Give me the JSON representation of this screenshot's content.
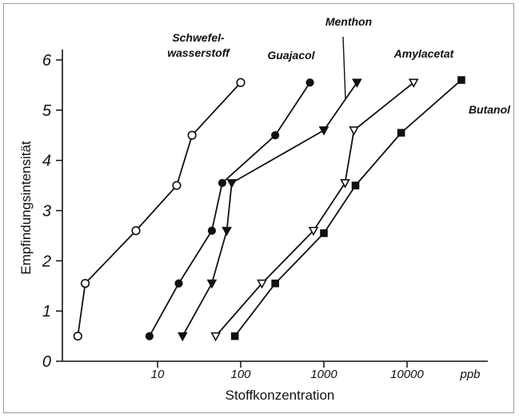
{
  "chart_data": {
    "type": "line",
    "title": "",
    "xlabel": "Stoffkonzentration",
    "ylabel": "Empfindungsintensität",
    "x_unit_label": "ppb",
    "x_scale": "log",
    "xlim": [
      0.9,
      50000
    ],
    "ylim": [
      0,
      6
    ],
    "x_ticks": [
      {
        "value": 10,
        "label": "10"
      },
      {
        "value": 100,
        "label": "100"
      },
      {
        "value": 1000,
        "label": "1000"
      },
      {
        "value": 10000,
        "label": "10000"
      }
    ],
    "y_ticks": [
      {
        "value": 0,
        "label": "0"
      },
      {
        "value": 1,
        "label": "1"
      },
      {
        "value": 2,
        "label": "2"
      },
      {
        "value": 3,
        "label": "3"
      },
      {
        "value": 4,
        "label": "4"
      },
      {
        "value": 5,
        "label": "5"
      },
      {
        "value": 6,
        "label": "6"
      }
    ],
    "grid": false,
    "series": [
      {
        "name": "Schwefel-wasserstoff",
        "label_lines": [
          "Schwefel-",
          "wasserstoff"
        ],
        "marker": "circle-open",
        "points": [
          {
            "x": 1.1,
            "y": 0.5
          },
          {
            "x": 1.35,
            "y": 1.55
          },
          {
            "x": 5.5,
            "y": 2.6
          },
          {
            "x": 17,
            "y": 3.5
          },
          {
            "x": 26,
            "y": 4.5
          },
          {
            "x": 100,
            "y": 5.55
          }
        ]
      },
      {
        "name": "Guajacol",
        "label_lines": [
          "Guajacol"
        ],
        "marker": "circle-filled",
        "points": [
          {
            "x": 8,
            "y": 0.5
          },
          {
            "x": 18,
            "y": 1.55
          },
          {
            "x": 45,
            "y": 2.6
          },
          {
            "x": 60,
            "y": 3.55
          },
          {
            "x": 260,
            "y": 4.5
          },
          {
            "x": 680,
            "y": 5.55
          }
        ]
      },
      {
        "name": "Menthon",
        "label_lines": [
          "Menthon"
        ],
        "marker": "triangle-filled",
        "points": [
          {
            "x": 20,
            "y": 0.5
          },
          {
            "x": 45,
            "y": 1.55
          },
          {
            "x": 68,
            "y": 2.6
          },
          {
            "x": 78,
            "y": 3.55
          },
          {
            "x": 1000,
            "y": 4.6
          },
          {
            "x": 2500,
            "y": 5.55
          }
        ]
      },
      {
        "name": "Amylacetat",
        "label_lines": [
          "Amylacetat"
        ],
        "marker": "triangle-open",
        "points": [
          {
            "x": 50,
            "y": 0.5
          },
          {
            "x": 180,
            "y": 1.55
          },
          {
            "x": 750,
            "y": 2.6
          },
          {
            "x": 1800,
            "y": 3.55
          },
          {
            "x": 2300,
            "y": 4.6
          },
          {
            "x": 12000,
            "y": 5.55
          }
        ]
      },
      {
        "name": "Butanol",
        "label_lines": [
          "Butanol"
        ],
        "marker": "square-filled",
        "points": [
          {
            "x": 85,
            "y": 0.5
          },
          {
            "x": 260,
            "y": 1.55
          },
          {
            "x": 1000,
            "y": 2.55
          },
          {
            "x": 2400,
            "y": 3.5
          },
          {
            "x": 8500,
            "y": 4.55
          },
          {
            "x": 45000,
            "y": 5.6
          }
        ]
      }
    ]
  }
}
